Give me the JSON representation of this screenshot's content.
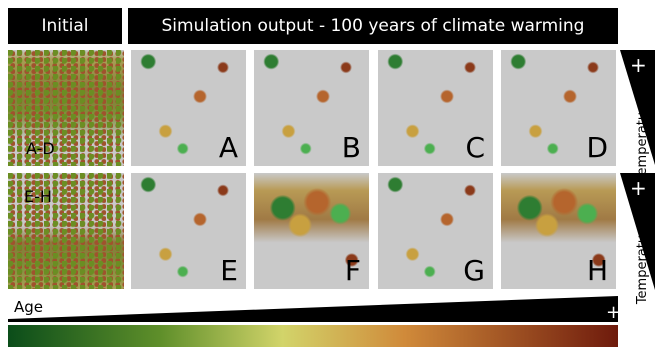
{
  "header": {
    "initial": "Initial",
    "simulation": "Simulation output - 100 years of climate warming"
  },
  "rows": [
    {
      "initial_label": "A-D",
      "panels": [
        "A",
        "B",
        "C",
        "D"
      ],
      "scale_sign": "+",
      "scale_label": "Temperature"
    },
    {
      "initial_label": "E-H",
      "panels": [
        "E",
        "F",
        "G",
        "H"
      ],
      "scale_sign": "+",
      "scale_label": "Temperature"
    }
  ],
  "age_scale": {
    "label": "Age",
    "sign": "+"
  }
}
